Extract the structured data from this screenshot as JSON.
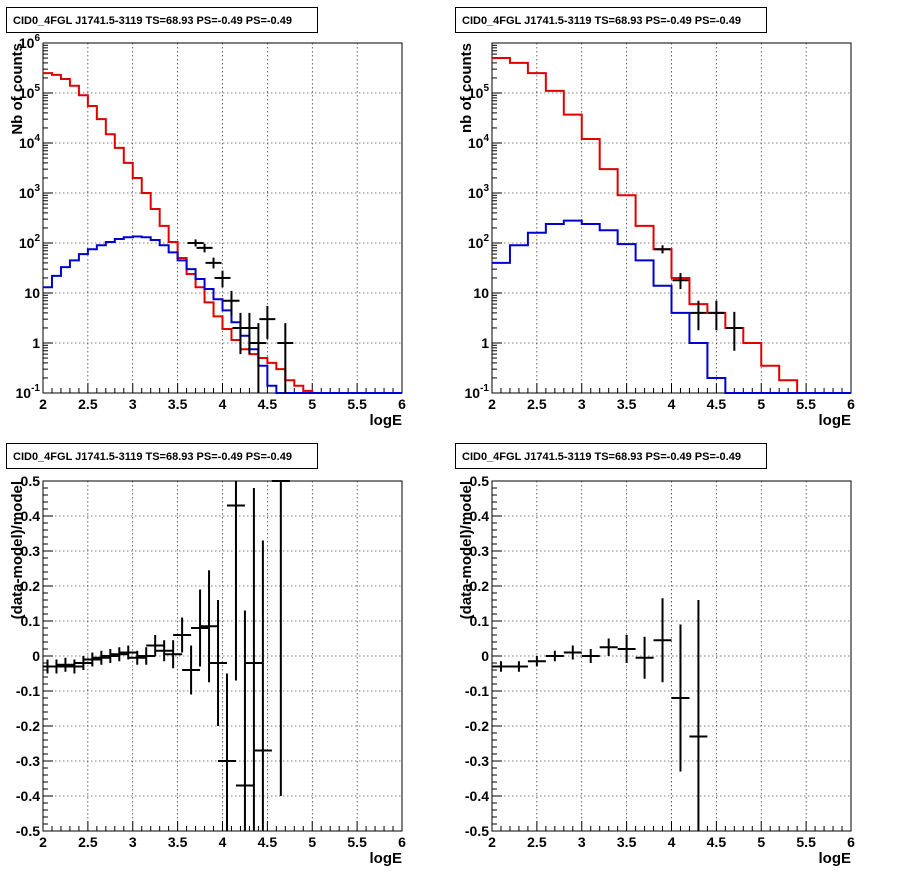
{
  "panels": [
    {
      "title": "CID0_4FGL J1741.5-3119 TS=68.93 PS=-0.49 PS=-0.49",
      "xlabel": "logE",
      "ylabel": "Nb of counts"
    },
    {
      "title": "CID0_4FGL J1741.5-3119 TS=68.93 PS=-0.49 PS=-0.49",
      "xlabel": "logE",
      "ylabel": "nb of counts"
    },
    {
      "title": "CID0_4FGL J1741.5-3119 TS=68.93 PS=-0.49 PS=-0.49",
      "xlabel": "logE",
      "ylabel": "(data-model)/model"
    },
    {
      "title": "CID0_4FGL J1741.5-3119 TS=68.93 PS=-0.49 PS=-0.49",
      "xlabel": "logE",
      "ylabel": "(data-model)/model"
    }
  ],
  "chart_data": [
    {
      "type": "line",
      "title": "CID0_4FGL J1741.5-3119 TS=68.93 PS=-0.49 PS=-0.49",
      "xlabel": "logE",
      "ylabel": "Nb of counts",
      "xlim": [
        2,
        6
      ],
      "ylim": [
        0.1,
        1000000
      ],
      "yscale": "log",
      "grid": true,
      "x_ticks": [
        "2",
        "2.5",
        "3",
        "3.5",
        "4",
        "4.5",
        "5",
        "5.5",
        "6"
      ],
      "y_ticks": [
        "10^-1",
        "1",
        "10",
        "10^2",
        "10^3",
        "10^4",
        "10^5",
        "10^6"
      ],
      "bin_edges": [
        2.0,
        2.1,
        2.2,
        2.3,
        2.4,
        2.5,
        2.6,
        2.7,
        2.8,
        2.9,
        3.0,
        3.1,
        3.2,
        3.3,
        3.4,
        3.5,
        3.6,
        3.7,
        3.8,
        3.9,
        4.0,
        4.1,
        4.2,
        4.3,
        4.4,
        4.5,
        4.6,
        4.7,
        4.8,
        4.9,
        5.0,
        5.1,
        5.2,
        5.3,
        5.4,
        5.5,
        5.6,
        5.7,
        5.8,
        5.9,
        6.0
      ],
      "series": [
        {
          "color": "#e00000",
          "style": "histogram",
          "values": [
            250000,
            230000,
            190000,
            140000,
            90000,
            55000,
            30000,
            15000,
            8000,
            4000,
            2000,
            1000,
            480,
            220,
            105,
            50,
            24,
            13,
            6.5,
            3.4,
            1.9,
            1.15,
            0.75,
            0.6,
            0.5,
            0.4,
            0.3,
            0.18,
            0.14,
            0.11,
            0.1,
            0.09,
            0.1,
            0.1,
            0.1,
            0.1,
            0.1,
            0.1,
            0.1,
            0.1
          ]
        },
        {
          "color": "#0000d0",
          "style": "histogram",
          "values": [
            13,
            22,
            33,
            45,
            60,
            75,
            90,
            105,
            120,
            130,
            135,
            130,
            115,
            90,
            65,
            45,
            30,
            19,
            12,
            7.5,
            4.5,
            2.6,
            1.4,
            0.75,
            0.35,
            0.14,
            0.1,
            0.1,
            0.1,
            0.1,
            0.1,
            0.1,
            0.1,
            0.1,
            0.1,
            0.1,
            0.1,
            0.1,
            0.1,
            0.1
          ]
        },
        {
          "color": "#000000",
          "style": "errorbars",
          "points": [
            {
              "x": 3.7,
              "y": 100,
              "lo": 85,
              "hi": 118
            },
            {
              "x": 3.8,
              "y": 80,
              "lo": 65,
              "hi": 97
            },
            {
              "x": 3.9,
              "y": 40,
              "lo": 31,
              "hi": 51
            },
            {
              "x": 4.0,
              "y": 20,
              "lo": 13,
              "hi": 28
            },
            {
              "x": 4.1,
              "y": 7,
              "lo": 3.5,
              "hi": 11
            },
            {
              "x": 4.2,
              "y": 2,
              "lo": 0.6,
              "hi": 4
            },
            {
              "x": 4.3,
              "y": 2,
              "lo": 0.6,
              "hi": 4
            },
            {
              "x": 4.4,
              "y": 1,
              "lo": 0.1,
              "hi": 2.5
            },
            {
              "x": 4.5,
              "y": 3,
              "lo": 1.2,
              "hi": 5.5
            },
            {
              "x": 4.7,
              "y": 1,
              "lo": 0.1,
              "hi": 2.5
            }
          ]
        }
      ]
    },
    {
      "type": "line",
      "title": "CID0_4FGL J1741.5-3119 TS=68.93 PS=-0.49 PS=-0.49",
      "xlabel": "logE",
      "ylabel": "nb of counts",
      "xlim": [
        2,
        6
      ],
      "ylim": [
        0.1,
        1000000
      ],
      "yscale": "log",
      "grid": true,
      "x_ticks": [
        "2",
        "2.5",
        "3",
        "3.5",
        "4",
        "4.5",
        "5",
        "5.5",
        "6"
      ],
      "y_ticks": [
        "10^-1",
        "1",
        "10",
        "10^2",
        "10^3",
        "10^4",
        "10^5"
      ],
      "bin_edges": [
        2.0,
        2.2,
        2.4,
        2.6,
        2.8,
        3.0,
        3.2,
        3.4,
        3.6,
        3.8,
        4.0,
        4.2,
        4.4,
        4.6,
        4.8,
        5.0,
        5.2,
        5.4,
        5.6,
        5.8,
        6.0
      ],
      "series": [
        {
          "color": "#e00000",
          "style": "histogram",
          "values": [
            500000,
            400000,
            250000,
            110000,
            37000,
            12000,
            3000,
            900,
            220,
            75,
            20,
            6,
            4,
            2,
            1,
            0.35,
            0.18,
            0.1,
            0.1,
            0.1
          ]
        },
        {
          "color": "#0000d0",
          "style": "histogram",
          "values": [
            40,
            90,
            160,
            240,
            280,
            240,
            180,
            95,
            45,
            14,
            4,
            1,
            0.2,
            0.1,
            0.1,
            0.1,
            0.1,
            0.1,
            0.1,
            0.1
          ]
        },
        {
          "color": "#000000",
          "style": "errorbars",
          "points": [
            {
              "x": 3.9,
              "y": 75,
              "lo": 62,
              "hi": 90
            },
            {
              "x": 4.1,
              "y": 18,
              "lo": 12,
              "hi": 25
            },
            {
              "x": 4.3,
              "y": 4,
              "lo": 1.8,
              "hi": 7
            },
            {
              "x": 4.5,
              "y": 4,
              "lo": 1.8,
              "hi": 7
            },
            {
              "x": 4.7,
              "y": 2,
              "lo": 0.7,
              "hi": 4.2
            }
          ]
        }
      ]
    },
    {
      "type": "scatter",
      "title": "CID0_4FGL J1741.5-3119 TS=68.93 PS=-0.49 PS=-0.49",
      "xlabel": "logE",
      "ylabel": "(data-model)/model",
      "xlim": [
        2,
        6
      ],
      "ylim": [
        -0.5,
        0.5
      ],
      "grid": true,
      "x_ticks": [
        "2",
        "2.5",
        "3",
        "3.5",
        "4",
        "4.5",
        "5",
        "5.5",
        "6"
      ],
      "y_ticks": [
        "-0.5",
        "-0.4",
        "-0.3",
        "-0.2",
        "-0.1",
        "0",
        "0.1",
        "0.2",
        "0.3",
        "0.4",
        "0.5"
      ],
      "series": [
        {
          "color": "#000000",
          "style": "errorbars",
          "points": [
            {
              "x": 2.05,
              "y": -0.03,
              "err": 0.02
            },
            {
              "x": 2.15,
              "y": -0.03,
              "err": 0.02
            },
            {
              "x": 2.25,
              "y": -0.025,
              "err": 0.02
            },
            {
              "x": 2.35,
              "y": -0.03,
              "err": 0.02
            },
            {
              "x": 2.45,
              "y": -0.02,
              "err": 0.02
            },
            {
              "x": 2.55,
              "y": -0.01,
              "err": 0.02
            },
            {
              "x": 2.65,
              "y": -0.005,
              "err": 0.02
            },
            {
              "x": 2.75,
              "y": 0.0,
              "err": 0.02
            },
            {
              "x": 2.85,
              "y": 0.005,
              "err": 0.02
            },
            {
              "x": 2.95,
              "y": 0.01,
              "err": 0.02
            },
            {
              "x": 3.05,
              "y": -0.005,
              "err": 0.02
            },
            {
              "x": 3.15,
              "y": 0.0,
              "err": 0.025
            },
            {
              "x": 3.25,
              "y": 0.03,
              "err": 0.03
            },
            {
              "x": 3.35,
              "y": 0.015,
              "err": 0.03
            },
            {
              "x": 3.45,
              "y": 0.005,
              "err": 0.04
            },
            {
              "x": 3.55,
              "y": 0.06,
              "err": 0.05
            },
            {
              "x": 3.65,
              "y": -0.04,
              "err": 0.07
            },
            {
              "x": 3.75,
              "y": 0.08,
              "err": 0.11
            },
            {
              "x": 3.85,
              "y": 0.085,
              "err": 0.16
            },
            {
              "x": 3.95,
              "y": -0.02,
              "err": 0.18
            },
            {
              "x": 4.05,
              "y": -0.3,
              "err": 0.25
            },
            {
              "x": 4.15,
              "y": 0.43,
              "err": 0.5
            },
            {
              "x": 4.25,
              "y": -0.37,
              "err": 0.5
            },
            {
              "x": 4.35,
              "y": -0.02,
              "err": 0.5
            },
            {
              "x": 4.45,
              "y": -0.27,
              "err": 0.6
            },
            {
              "x": 4.65,
              "y": 0.5,
              "err": 0.9
            }
          ]
        }
      ]
    },
    {
      "type": "scatter",
      "title": "CID0_4FGL J1741.5-3119 TS=68.93 PS=-0.49 PS=-0.49",
      "xlabel": "logE",
      "ylabel": "(data-model)/model",
      "xlim": [
        2,
        6
      ],
      "ylim": [
        -0.5,
        0.5
      ],
      "grid": true,
      "x_ticks": [
        "2",
        "2.5",
        "3",
        "3.5",
        "4",
        "4.5",
        "5",
        "5.5",
        "6"
      ],
      "y_ticks": [
        "-0.5",
        "-0.4",
        "-0.3",
        "-0.2",
        "-0.1",
        "0",
        "0.1",
        "0.2",
        "0.3",
        "0.4",
        "0.5"
      ],
      "series": [
        {
          "color": "#000000",
          "style": "errorbars",
          "points": [
            {
              "x": 2.1,
              "y": -0.03,
              "err": 0.015
            },
            {
              "x": 2.3,
              "y": -0.03,
              "err": 0.015
            },
            {
              "x": 2.5,
              "y": -0.015,
              "err": 0.015
            },
            {
              "x": 2.7,
              "y": 0.0,
              "err": 0.015
            },
            {
              "x": 2.9,
              "y": 0.01,
              "err": 0.02
            },
            {
              "x": 3.1,
              "y": 0.0,
              "err": 0.02
            },
            {
              "x": 3.3,
              "y": 0.025,
              "err": 0.025
            },
            {
              "x": 3.5,
              "y": 0.02,
              "err": 0.04
            },
            {
              "x": 3.7,
              "y": -0.005,
              "err": 0.06
            },
            {
              "x": 3.9,
              "y": 0.045,
              "err": 0.12
            },
            {
              "x": 4.1,
              "y": -0.12,
              "err": 0.21
            },
            {
              "x": 4.3,
              "y": -0.23,
              "err": 0.39
            }
          ]
        }
      ]
    }
  ]
}
